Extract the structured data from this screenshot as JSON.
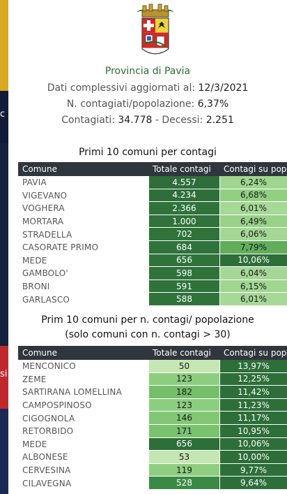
{
  "header": {
    "title": "Provincia di Pavia",
    "line1_label": "Dati complessivi aggiornati al: ",
    "line1_value": "12/3/2021",
    "line2_label": "N. contagiati/popolazione: ",
    "line2_value": "6,37%",
    "line3_label": "Contagiati:  ",
    "line3_cases": "34.778",
    "line3_sep": " - Decessi: ",
    "line3_deaths": "2.251"
  },
  "backdrop": {
    "glyph1": "c",
    "glyph2": "si"
  },
  "table1": {
    "title": "Primi 10 comuni per contagi",
    "headers": [
      "Comune",
      "Totale contagi",
      "Contagi su popolazione"
    ],
    "rows": [
      {
        "name": "PAVIA",
        "total": "4.557",
        "pct": "6,24%",
        "total_color": "#2d6e39",
        "pct_color": "#9fd590"
      },
      {
        "name": "VIGEVANO",
        "total": "4.234",
        "total_color": "#2d6e39",
        "pct": "6,68%",
        "pct_color": "#91cf82"
      },
      {
        "name": "VOGHERA",
        "total": "2.366",
        "total_color": "#2f733b",
        "pct": "6,01%",
        "pct_color": "#a6d897"
      },
      {
        "name": "MORTARA",
        "total": "1.000",
        "total_color": "#2f733b",
        "pct": "6,49%",
        "pct_color": "#98d288"
      },
      {
        "name": "STRADELLA",
        "total": "702",
        "total_color": "#2f733b",
        "pct": "6,06%",
        "pct_color": "#a4d796"
      },
      {
        "name": "CASORATE PRIMO",
        "total": "684",
        "total_color": "#2f733b",
        "pct": "7,79%",
        "pct_color": "#62ad5c"
      },
      {
        "name": "MEDE",
        "total": "656",
        "total_color": "#2f733b",
        "pct": "10,06%",
        "pct_color": "#2d6e39"
      },
      {
        "name": "GAMBOLO'",
        "total": "598",
        "total_color": "#2f733b",
        "pct": "6,04%",
        "pct_color": "#a5d796"
      },
      {
        "name": "BRONI",
        "total": "591",
        "total_color": "#2f733b",
        "pct": "6,15%",
        "pct_color": "#a1d692"
      },
      {
        "name": "GARLASCO",
        "total": "588",
        "total_color": "#2f733b",
        "pct": "6,01%",
        "pct_color": "#a6d897"
      }
    ]
  },
  "table2": {
    "title_line1": "Prim 10 comuni per n. contagi/ popolazione",
    "title_line2": "(solo comuni con n. contagi > 30)",
    "headers": [
      "Comune",
      "Totale contagi",
      "Contagi su popolazione"
    ],
    "rows": [
      {
        "name": "MENCONICO",
        "total": "50",
        "total_color": "#c6e7b4",
        "total_text": "light",
        "pct": "13,97%"
      },
      {
        "name": "ZEME",
        "total": "123",
        "total_color": "#8dcd7f",
        "total_text": "light",
        "pct": "12,25%"
      },
      {
        "name": "SARTIRANA LOMELLINA",
        "total": "182",
        "total_color": "#75bf6b",
        "total_text": "light",
        "pct": "11,42%"
      },
      {
        "name": "CAMPOSPINOSO",
        "total": "123",
        "total_color": "#8dcd7f",
        "total_text": "light",
        "pct": "11,23%"
      },
      {
        "name": "CIGOGNOLA",
        "total": "146",
        "total_color": "#82c776",
        "total_text": "light",
        "pct": "11,17%"
      },
      {
        "name": "RETORBIDO",
        "total": "171",
        "total_color": "#79c36f",
        "total_text": "light",
        "pct": "10,95%"
      },
      {
        "name": "MEDE",
        "total": "656",
        "total_color": "#2d6e39",
        "total_text": "dark",
        "pct": "10,06%"
      },
      {
        "name": "ALBONESE",
        "total": "53",
        "total_color": "#c4e6b2",
        "total_text": "light",
        "pct": "10,00%"
      },
      {
        "name": "CERVESINA",
        "total": "119",
        "total_color": "#8fce80",
        "total_text": "light",
        "pct": "9,77%"
      },
      {
        "name": "CILAVEGNA",
        "total": "528",
        "total_color": "#3a8a45",
        "total_text": "dark",
        "pct": "9,64%"
      }
    ]
  },
  "colors": {
    "accent_green": "#2f6b34",
    "table_header": "#30363d",
    "pct_column_dark": "#2d6e39"
  }
}
